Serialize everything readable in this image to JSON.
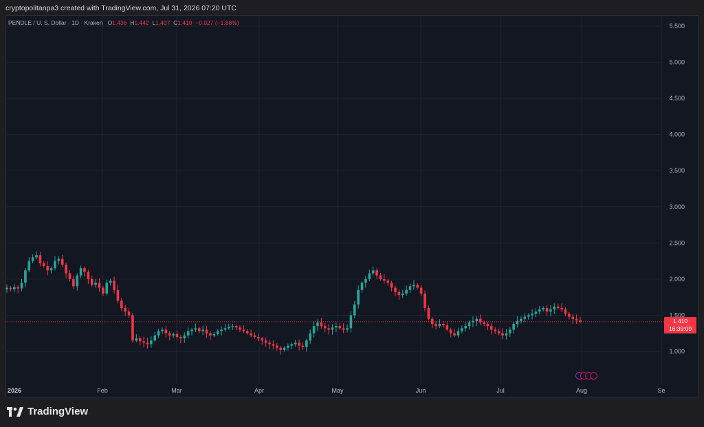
{
  "header": {
    "text": "cryptopolitanpa3 created with TradingView.com, Jul 31, 2026 07:20 UTC"
  },
  "legend": {
    "symbol": "PENDLE / U. S. Dollar · 1D · Kraken",
    "o_label": "O",
    "o_value": "1.436",
    "h_label": "H",
    "h_value": "1.442",
    "l_label": "L",
    "l_value": "1.407",
    "c_label": "C",
    "c_value": "1.410",
    "change": "−0.027 (−1.88%)"
  },
  "price_tag": {
    "price": "1.410",
    "countdown": "16:39:09"
  },
  "footer": {
    "brand": "TradingView"
  },
  "colors": {
    "up": "#26a69a",
    "down": "#f23645",
    "bg": "#131722",
    "grid": "#1f2330",
    "axis_text": "#b2b5be"
  },
  "chart_data": {
    "type": "candlestick",
    "title": "",
    "y_ticks": [
      "1.000",
      "1.500",
      "2.000",
      "2.500",
      "3.000",
      "3.500",
      "4.000",
      "4.500",
      "5.000",
      "5.500"
    ],
    "ylim": [
      0.53,
      5.65
    ],
    "x_ticks": [
      "2026",
      "Feb",
      "Mar",
      "Apr",
      "May",
      "Jun",
      "Jul",
      "Aug",
      "Se"
    ],
    "last_price": 1.41,
    "grid": true,
    "close_series": [
      1.88,
      1.86,
      1.89,
      1.87,
      1.95,
      2.12,
      2.25,
      2.3,
      2.33,
      2.22,
      2.18,
      2.12,
      2.15,
      2.25,
      2.28,
      2.2,
      2.08,
      2.0,
      1.9,
      2.05,
      2.15,
      2.1,
      2.0,
      1.92,
      1.95,
      1.88,
      1.8,
      1.95,
      1.98,
      1.85,
      1.7,
      1.6,
      1.55,
      1.5,
      1.15,
      1.18,
      1.14,
      1.12,
      1.1,
      1.15,
      1.22,
      1.28,
      1.3,
      1.25,
      1.22,
      1.24,
      1.2,
      1.18,
      1.22,
      1.28,
      1.3,
      1.32,
      1.28,
      1.3,
      1.25,
      1.22,
      1.24,
      1.28,
      1.3,
      1.32,
      1.34,
      1.35,
      1.33,
      1.3,
      1.28,
      1.25,
      1.22,
      1.2,
      1.18,
      1.15,
      1.12,
      1.1,
      1.08,
      1.05,
      1.02,
      1.05,
      1.08,
      1.1,
      1.12,
      1.08,
      1.06,
      1.15,
      1.25,
      1.35,
      1.4,
      1.35,
      1.32,
      1.3,
      1.33,
      1.35,
      1.32,
      1.3,
      1.32,
      1.5,
      1.65,
      1.85,
      1.95,
      2.0,
      2.08,
      2.12,
      2.05,
      2.0,
      1.98,
      1.95,
      1.88,
      1.82,
      1.78,
      1.8,
      1.85,
      1.9,
      1.92,
      1.88,
      1.8,
      1.6,
      1.45,
      1.38,
      1.35,
      1.38,
      1.36,
      1.3,
      1.25,
      1.22,
      1.28,
      1.32,
      1.35,
      1.4,
      1.42,
      1.45,
      1.4,
      1.38,
      1.35,
      1.3,
      1.28,
      1.25,
      1.22,
      1.25,
      1.3,
      1.38,
      1.42,
      1.45,
      1.48,
      1.5,
      1.52,
      1.55,
      1.58,
      1.6,
      1.55,
      1.58,
      1.62,
      1.6,
      1.58,
      1.52,
      1.48,
      1.45,
      1.43,
      1.41
    ]
  }
}
